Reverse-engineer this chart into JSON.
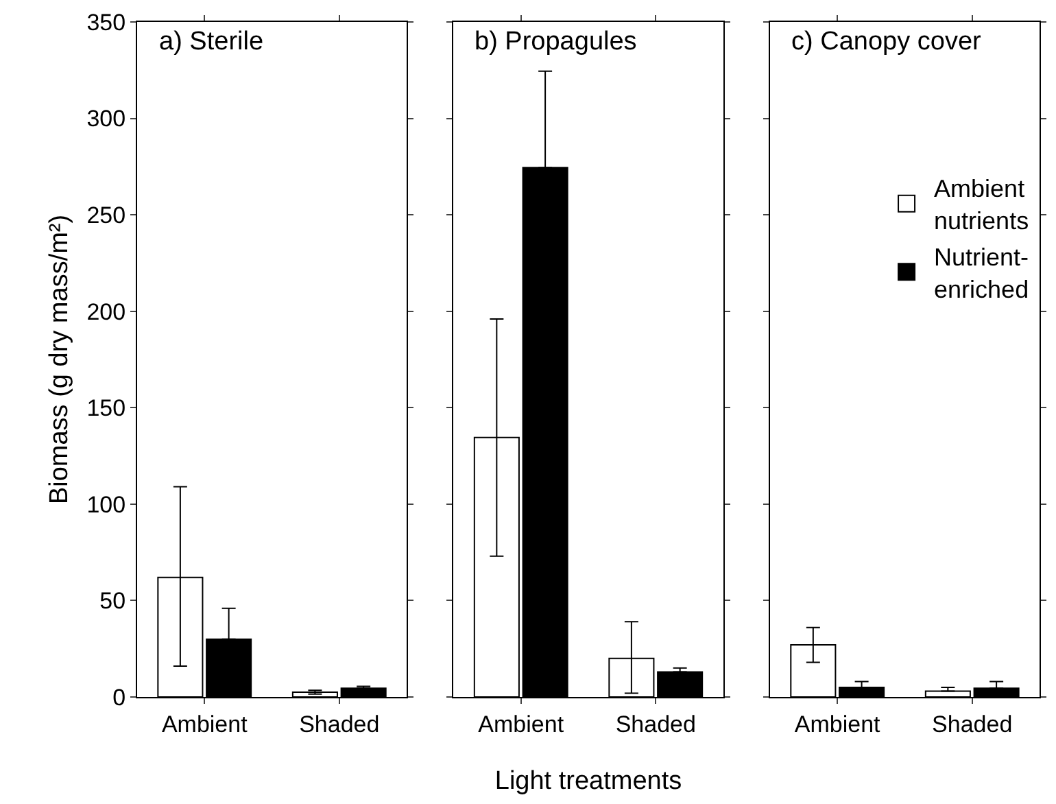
{
  "chart_data": [
    {
      "type": "bar",
      "title": "a) Sterile",
      "ylabel": "Biomass (g dry mass/m²)",
      "categories": [
        "Ambient",
        "Shaded"
      ],
      "ylim": [
        0,
        350
      ],
      "yticks": [
        0,
        50,
        100,
        150,
        200,
        250,
        300,
        350
      ],
      "series": [
        {
          "color": "#ffffff",
          "values": [
            62,
            2.5
          ],
          "errors": [
            [
              16,
              109
            ],
            1
          ]
        },
        {
          "color": "#000000",
          "values": [
            30,
            4.5
          ],
          "errors": [
            [
              30,
              46
            ],
            [
              4.5,
              5.5
            ]
          ]
        }
      ]
    },
    {
      "type": "bar",
      "title": "b) Propagules",
      "xlabel": "Light treatments",
      "categories": [
        "Ambient",
        "Shaded"
      ],
      "ylim": [
        0,
        350
      ],
      "yticks": [
        0,
        50,
        100,
        150,
        200,
        250,
        300,
        350
      ],
      "tick_labels": "x",
      "series": [
        {
          "color": "#ffffff",
          "values": [
            134.5,
            20
          ],
          "errors": [
            [
              73,
              196
            ],
            [
              2,
              39
            ]
          ]
        },
        {
          "color": "#000000",
          "values": [
            274.5,
            13
          ],
          "errors": [
            [
              274.5,
              324.5
            ],
            [
              13,
              15
            ]
          ]
        }
      ]
    },
    {
      "type": "bar",
      "title": "c) Canopy cover",
      "categories": [
        "Ambient",
        "Shaded"
      ],
      "ylim": [
        0,
        350
      ],
      "yticks": [
        0,
        50,
        100,
        150,
        200,
        250,
        300,
        350
      ],
      "tick_labels": "x",
      "legend": "right",
      "series": [
        {
          "name": "Ambient nutrients",
          "color": "#ffffff",
          "values": [
            27,
            3
          ],
          "errors": [
            [
              18,
              36
            ],
            [
              3,
              5
            ]
          ]
        },
        {
          "name": "Nutrient-enriched",
          "color": "#000000",
          "values": [
            5,
            4.5
          ],
          "errors": [
            [
              5,
              8
            ],
            [
              4.5,
              8
            ]
          ]
        }
      ]
    }
  ]
}
